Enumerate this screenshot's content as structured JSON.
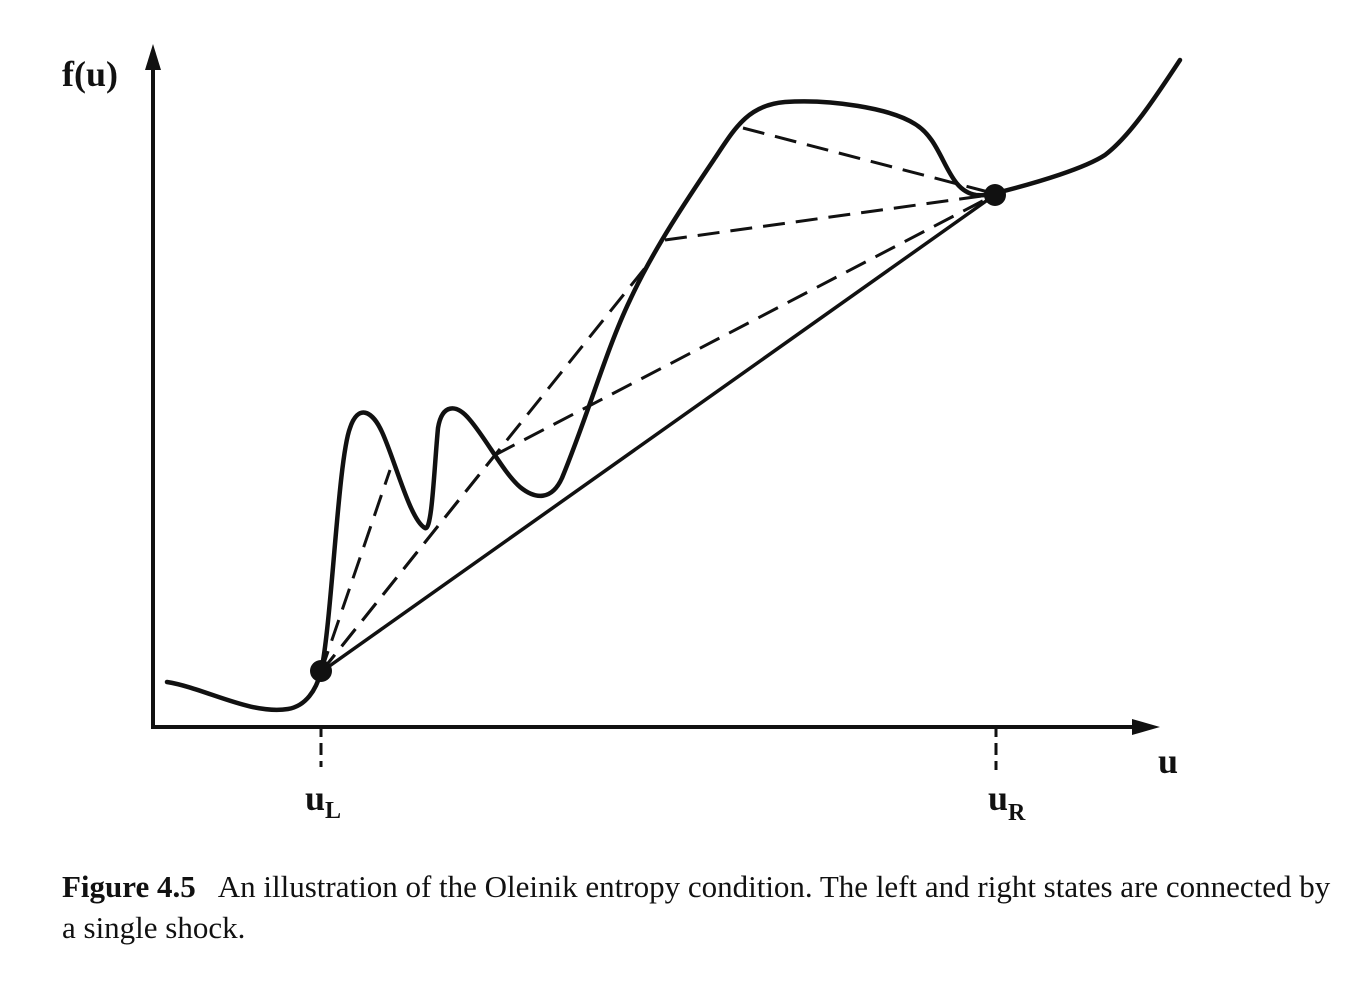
{
  "axes": {
    "y_label": "f(u)",
    "x_label": "u"
  },
  "points": {
    "left": {
      "base": "u",
      "sub": "L"
    },
    "right": {
      "base": "u",
      "sub": "R"
    }
  },
  "caption": {
    "number": "Figure 4.5",
    "text": "An illustration of the Oleinik entropy condition. The left and right states are connected by a single shock."
  },
  "colors": {
    "ink": "#111111",
    "background": "#ffffff"
  }
}
